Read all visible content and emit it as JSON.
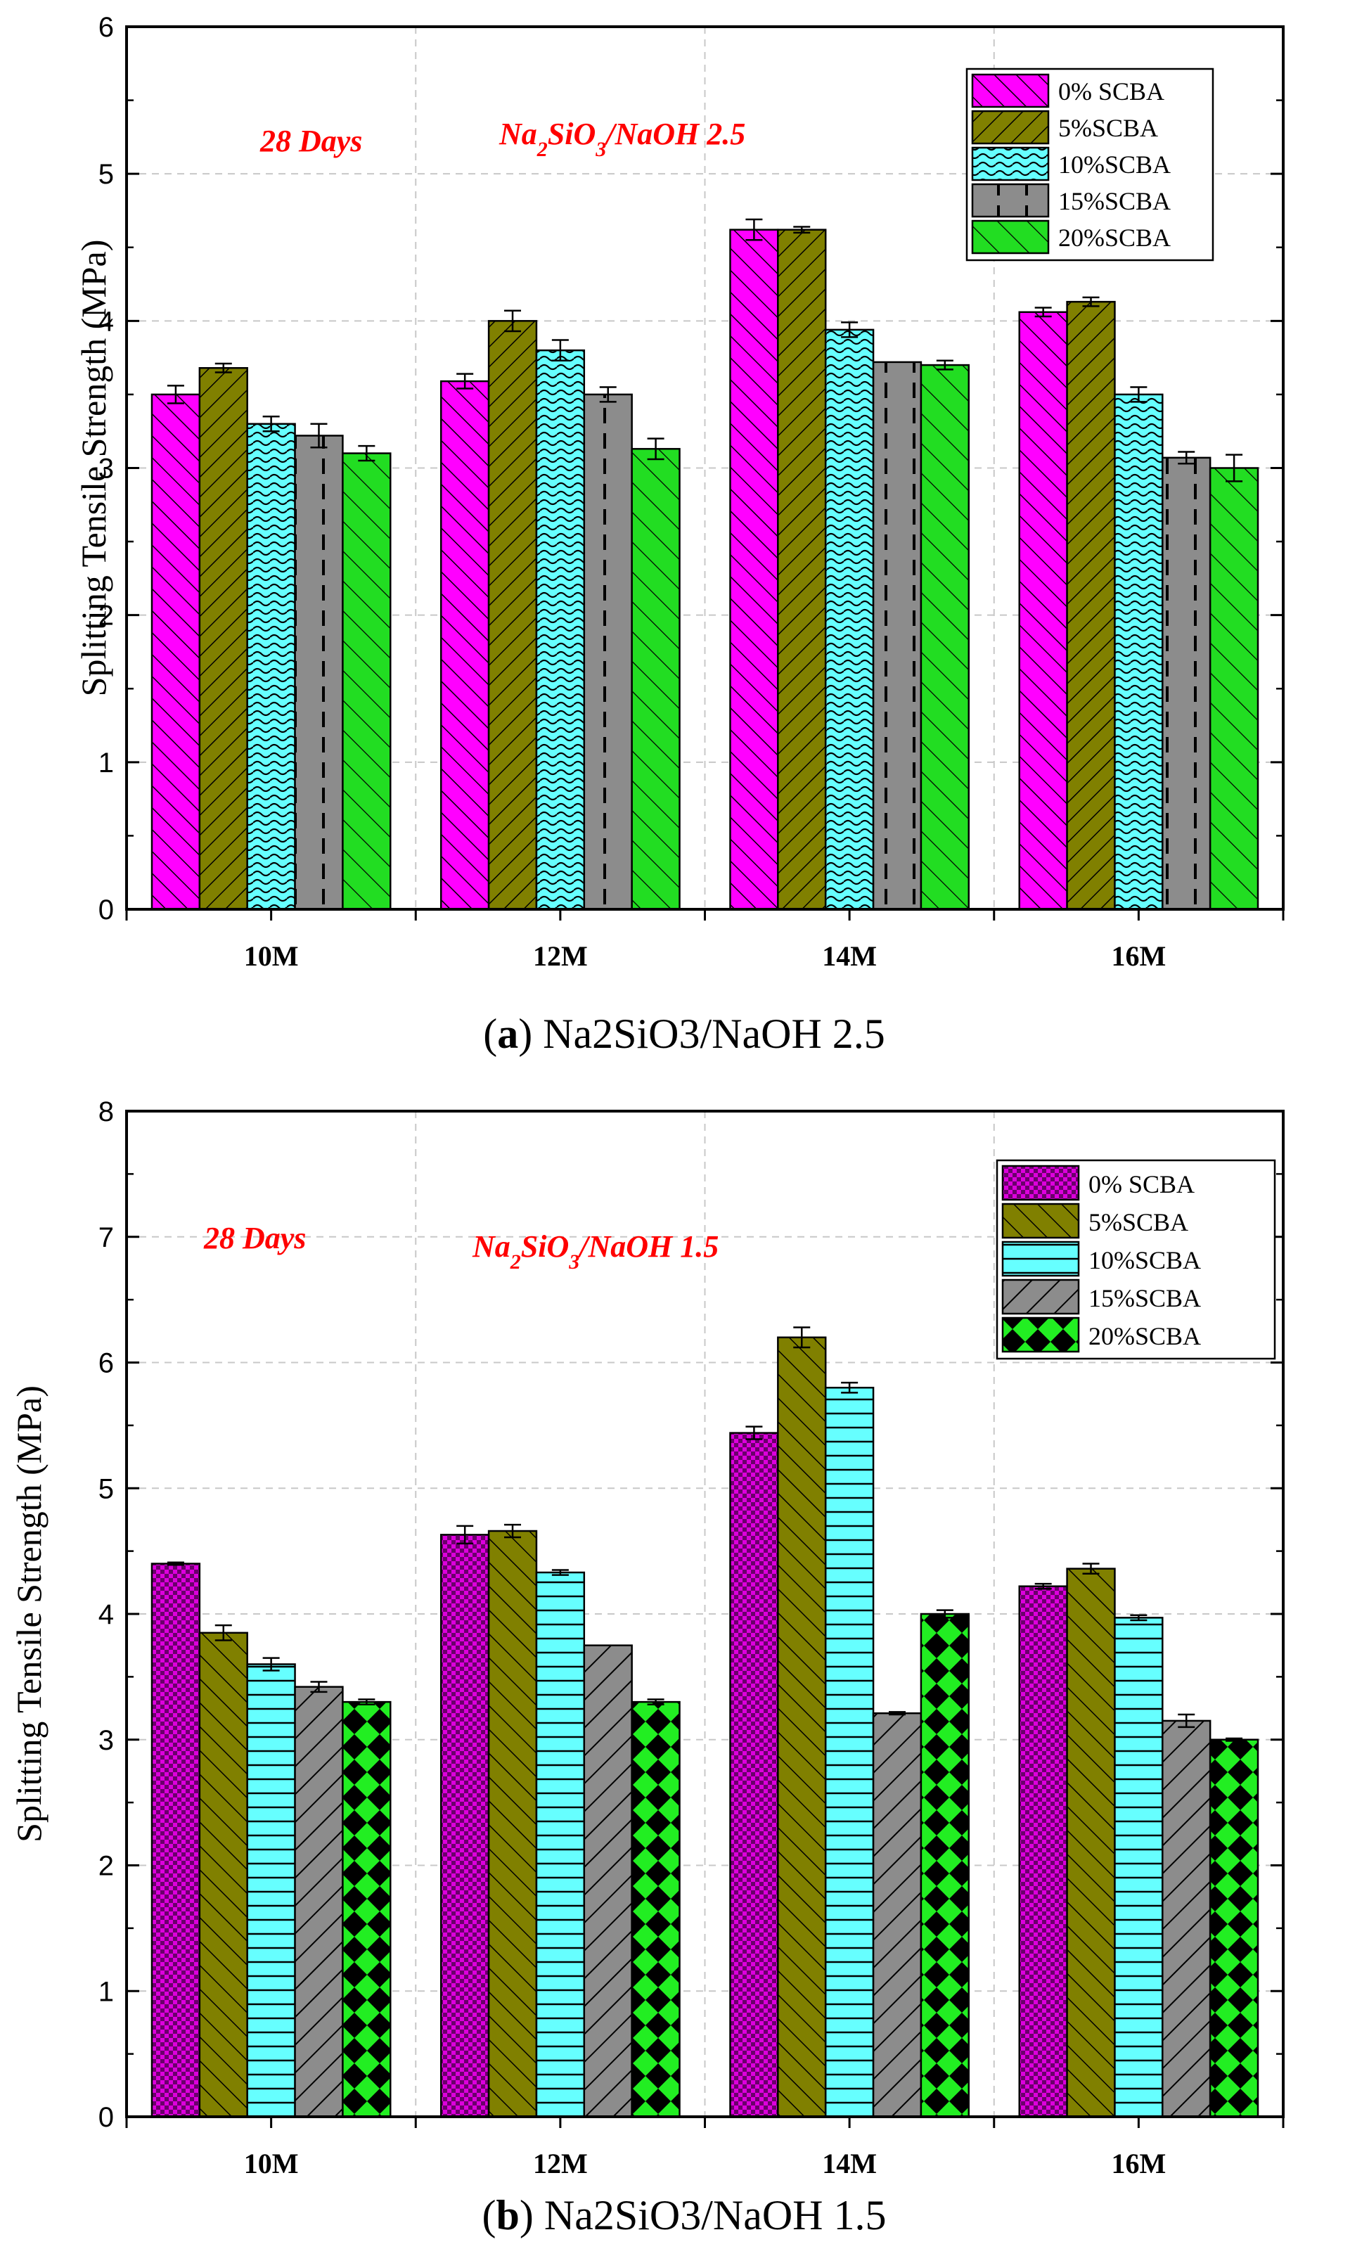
{
  "chart_data": [
    {
      "type": "bar",
      "categories": [
        "10M",
        "12M",
        "14M",
        "16M"
      ],
      "series": [
        {
          "name": "0% SCBA",
          "values": [
            3.5,
            3.59,
            4.62,
            4.06
          ],
          "errors": [
            0.06,
            0.05,
            0.07,
            0.03
          ],
          "color": "#ff00ff",
          "pattern": "diag-right"
        },
        {
          "name": "5%SCBA",
          "values": [
            3.68,
            4.0,
            4.62,
            4.13
          ],
          "errors": [
            0.03,
            0.07,
            0.02,
            0.03
          ],
          "color": "#808000",
          "pattern": "diag-left"
        },
        {
          "name": "10%SCBA",
          "values": [
            3.3,
            3.8,
            3.94,
            3.5
          ],
          "errors": [
            0.05,
            0.07,
            0.05,
            0.05
          ],
          "color": "#66ffff",
          "pattern": "weave"
        },
        {
          "name": "15%SCBA",
          "values": [
            3.22,
            3.5,
            3.72,
            3.07
          ],
          "errors": [
            0.08,
            0.05,
            0.0,
            0.04
          ],
          "color": "#8c8c8c",
          "pattern": "dashes"
        },
        {
          "name": "20%SCBA",
          "values": [
            3.1,
            3.13,
            3.7,
            3.0
          ],
          "errors": [
            0.05,
            0.07,
            0.03,
            0.09
          ],
          "color": "#22dd22",
          "pattern": "diag-right-sparse"
        }
      ],
      "ylabel": "Splitting Tensile Strength (MPa)",
      "ylim": [
        0,
        6
      ],
      "yticks": [
        0,
        1,
        2,
        3,
        4,
        5,
        6
      ],
      "grid": true,
      "legend": "top-right",
      "annotations": [
        "28 Days"
      ],
      "annotation_formula": {
        "p1": "Na",
        "s1": "2",
        "p2": "SiO",
        "s2": "3",
        "p3": "/NaOH 2.5"
      },
      "caption": {
        "letter": "a",
        "text": "Na2SiO3/NaOH 2.5"
      }
    },
    {
      "type": "bar",
      "categories": [
        "10M",
        "12M",
        "14M",
        "16M"
      ],
      "series": [
        {
          "name": "0% SCBA",
          "values": [
            4.4,
            4.63,
            5.44,
            4.22
          ],
          "errors": [
            0.01,
            0.07,
            0.05,
            0.02
          ],
          "color": "#dd00dd",
          "pattern": "checker"
        },
        {
          "name": "5%SCBA",
          "values": [
            3.85,
            4.66,
            6.2,
            4.36
          ],
          "errors": [
            0.06,
            0.05,
            0.08,
            0.04
          ],
          "color": "#808000",
          "pattern": "diag-right"
        },
        {
          "name": "10%SCBA",
          "values": [
            3.6,
            4.33,
            5.8,
            3.97
          ],
          "errors": [
            0.05,
            0.02,
            0.04,
            0.02
          ],
          "color": "#66ffff",
          "pattern": "horizontal"
        },
        {
          "name": "15%SCBA",
          "values": [
            3.42,
            3.75,
            3.21,
            3.15
          ],
          "errors": [
            0.04,
            0.0,
            0.01,
            0.05
          ],
          "color": "#8c8c8c",
          "pattern": "diag-left"
        },
        {
          "name": "20%SCBA",
          "values": [
            3.3,
            3.3,
            4.0,
            3.0
          ],
          "errors": [
            0.02,
            0.02,
            0.03,
            0.01
          ],
          "color": "#22ee22",
          "pattern": "diamond"
        }
      ],
      "ylabel": "Splitting Tensile Strength (MPa)",
      "ylim": [
        0,
        8
      ],
      "yticks": [
        0,
        1,
        2,
        3,
        4,
        5,
        6,
        7,
        8
      ],
      "grid": true,
      "legend": "top-right",
      "annotations": [
        "28 Days"
      ],
      "annotation_formula": {
        "p1": "Na",
        "s1": "2",
        "p2": "SiO",
        "s2": "3",
        "p3": "/NaOH 1.5"
      },
      "caption": {
        "letter": "b",
        "text": "Na2SiO3/NaOH 1.5"
      }
    }
  ]
}
